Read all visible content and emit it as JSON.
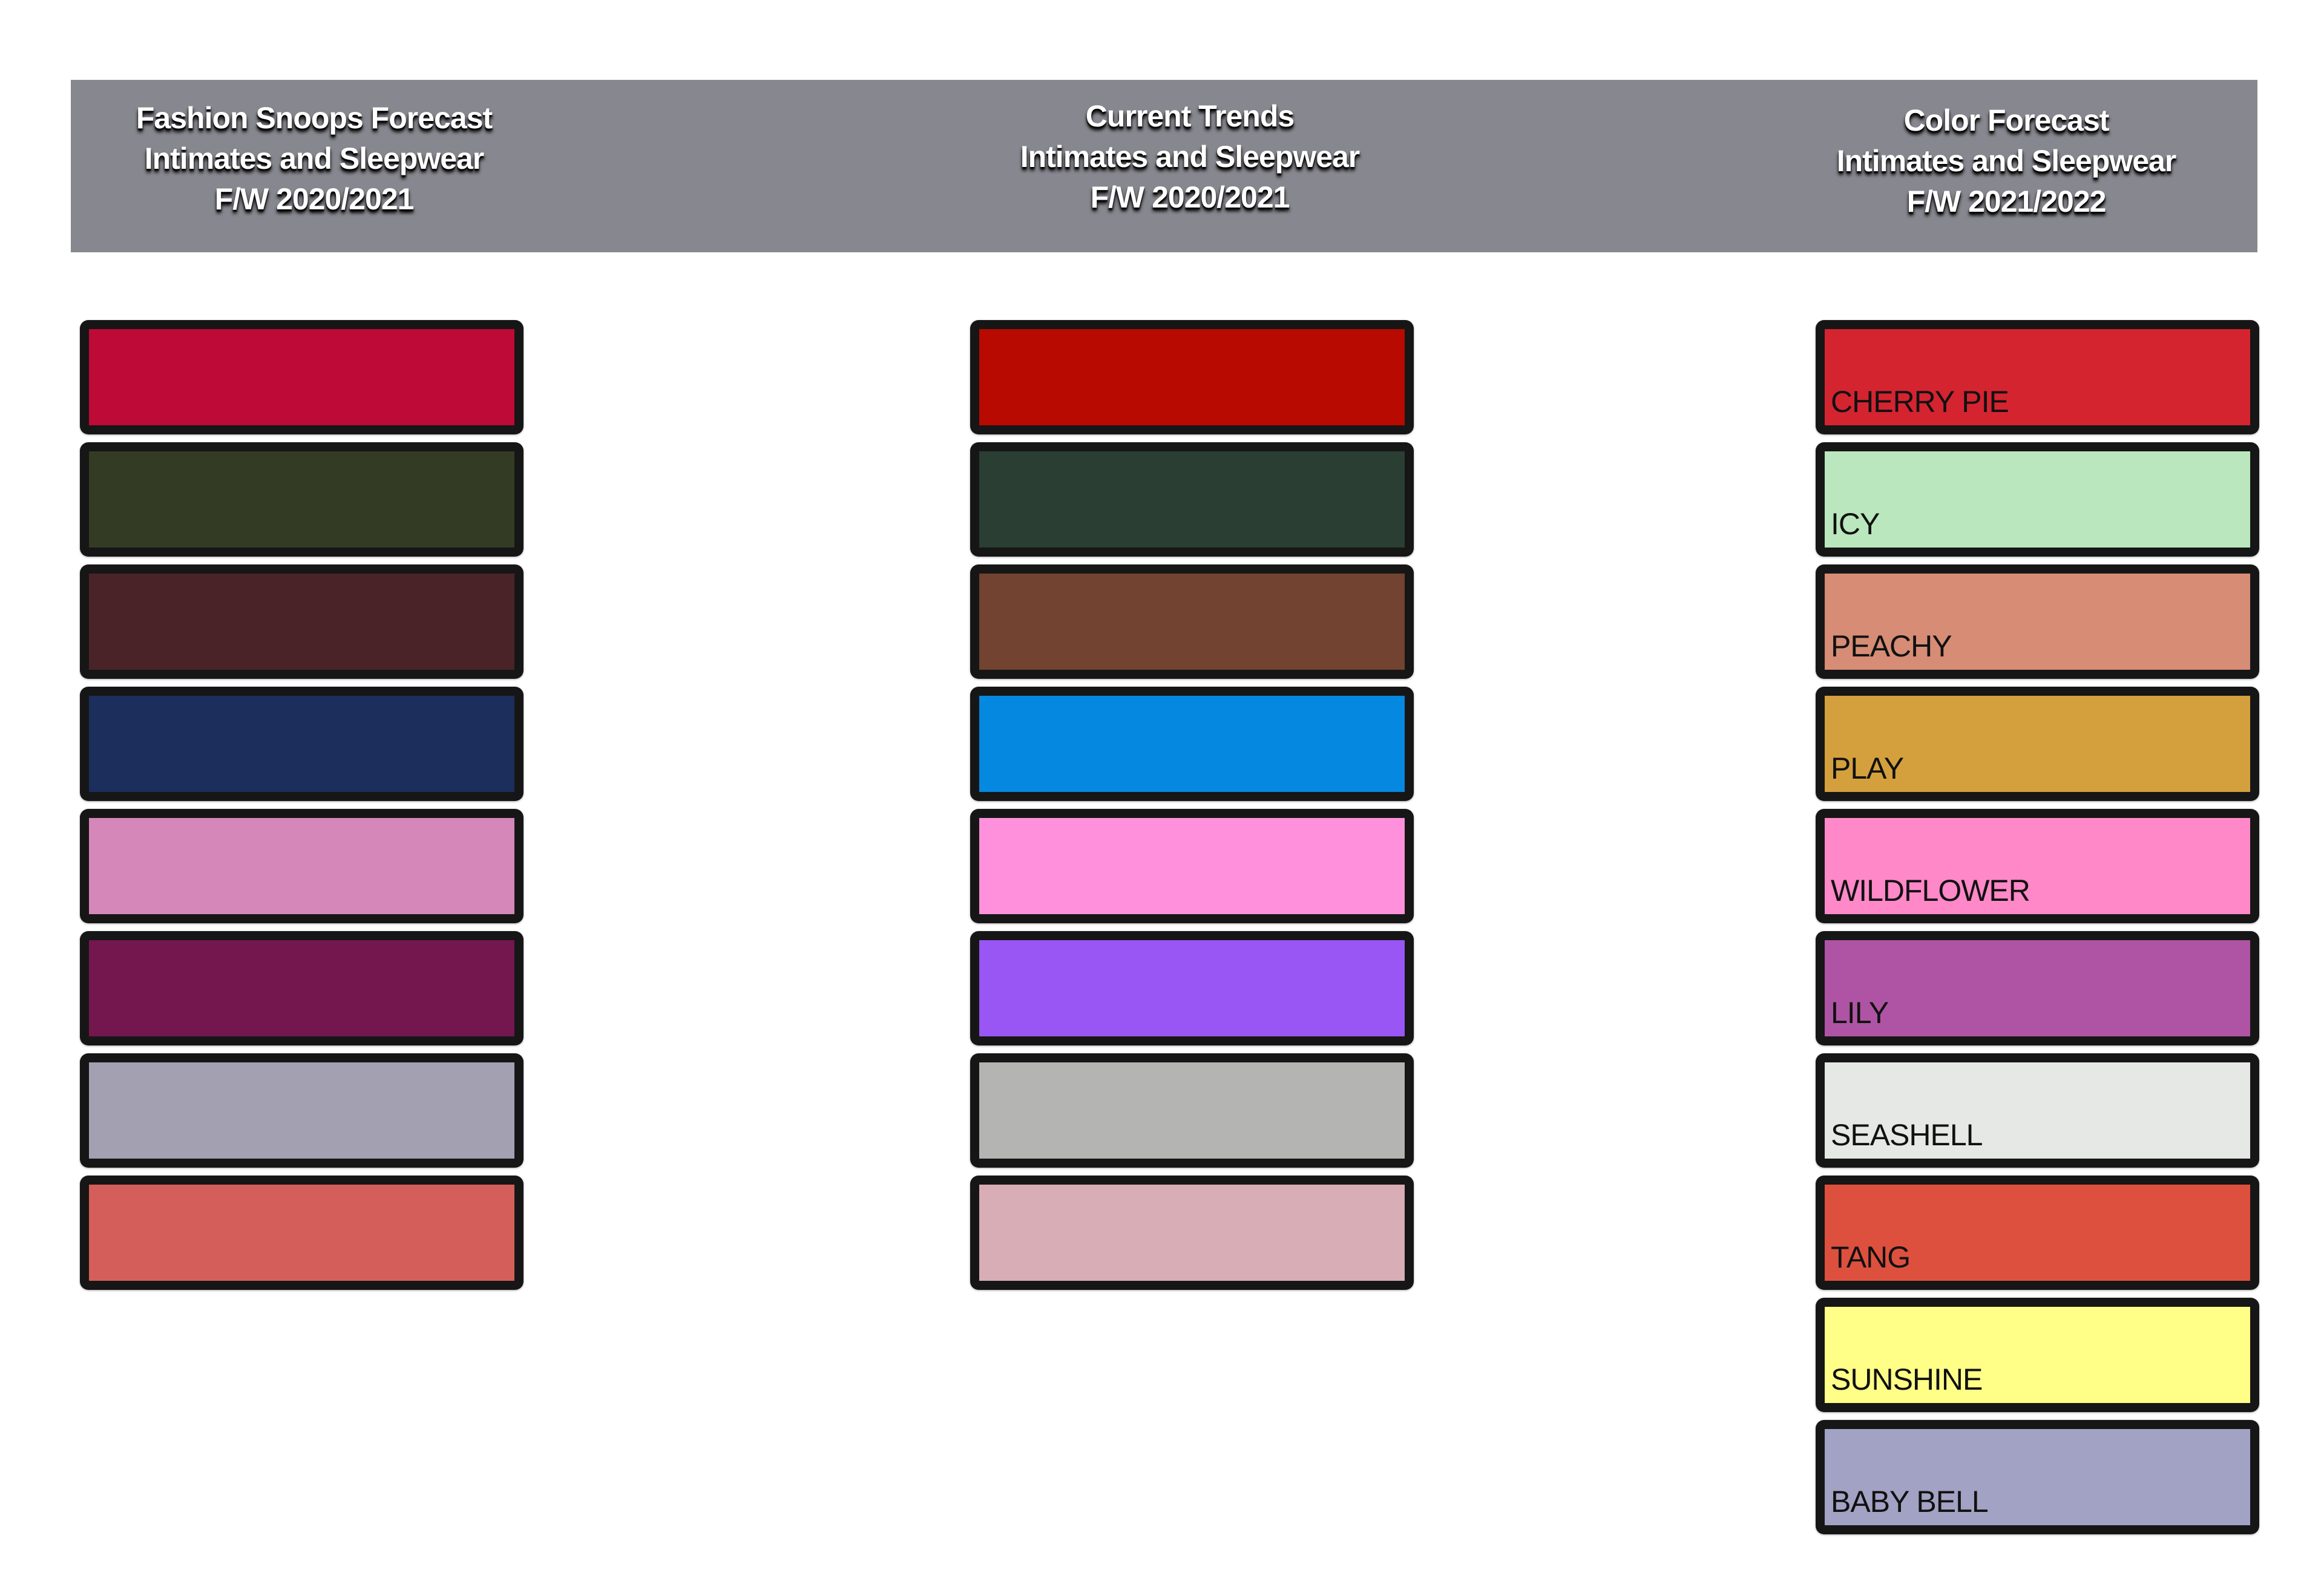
{
  "header": {
    "color": "#87878f",
    "columns": [
      {
        "line1": "Fashion Snoops Forecast",
        "line2": "Intimates and Sleepwear",
        "line3": "F/W 2020/2021"
      },
      {
        "line1": "Current Trends",
        "line2": "Intimates and Sleepwear",
        "line3": "F/W 2020/2021"
      },
      {
        "line1": "Color Forecast",
        "line2": "Intimates and Sleepwear",
        "line3": "F/W 2021/2022"
      }
    ]
  },
  "swatches": {
    "fashion_snoops": [
      "#bd0a36",
      "#333b24",
      "#4a2328",
      "#1c2e5c",
      "#d487b8",
      "#73174e",
      "#a3a0b2",
      "#d45e5a"
    ],
    "current_trends": [
      "#b80a00",
      "#2a3e33",
      "#714330",
      "#0588e0",
      "#ff91dc",
      "#9956f5",
      "#b4b5b3",
      "#d8adb5"
    ],
    "color_forecast": [
      {
        "name": "CHERRY PIE",
        "color": "#d42430"
      },
      {
        "name": "ICY",
        "color": "#bae7bd"
      },
      {
        "name": "PEACHY",
        "color": "#d68c75"
      },
      {
        "name": "PLAY",
        "color": "#d4a03d"
      },
      {
        "name": "WILDFLOWER",
        "color": "#ff88c8"
      },
      {
        "name": "LILY",
        "color": "#af54a4"
      },
      {
        "name": "SEASHELL",
        "color": "#e6e8e5"
      },
      {
        "name": "TANG",
        "color": "#de503e"
      },
      {
        "name": "SUNSHINE",
        "color": "#ffff88"
      },
      {
        "name": "BABY BELL",
        "color": "#a2a2c4"
      }
    ]
  }
}
